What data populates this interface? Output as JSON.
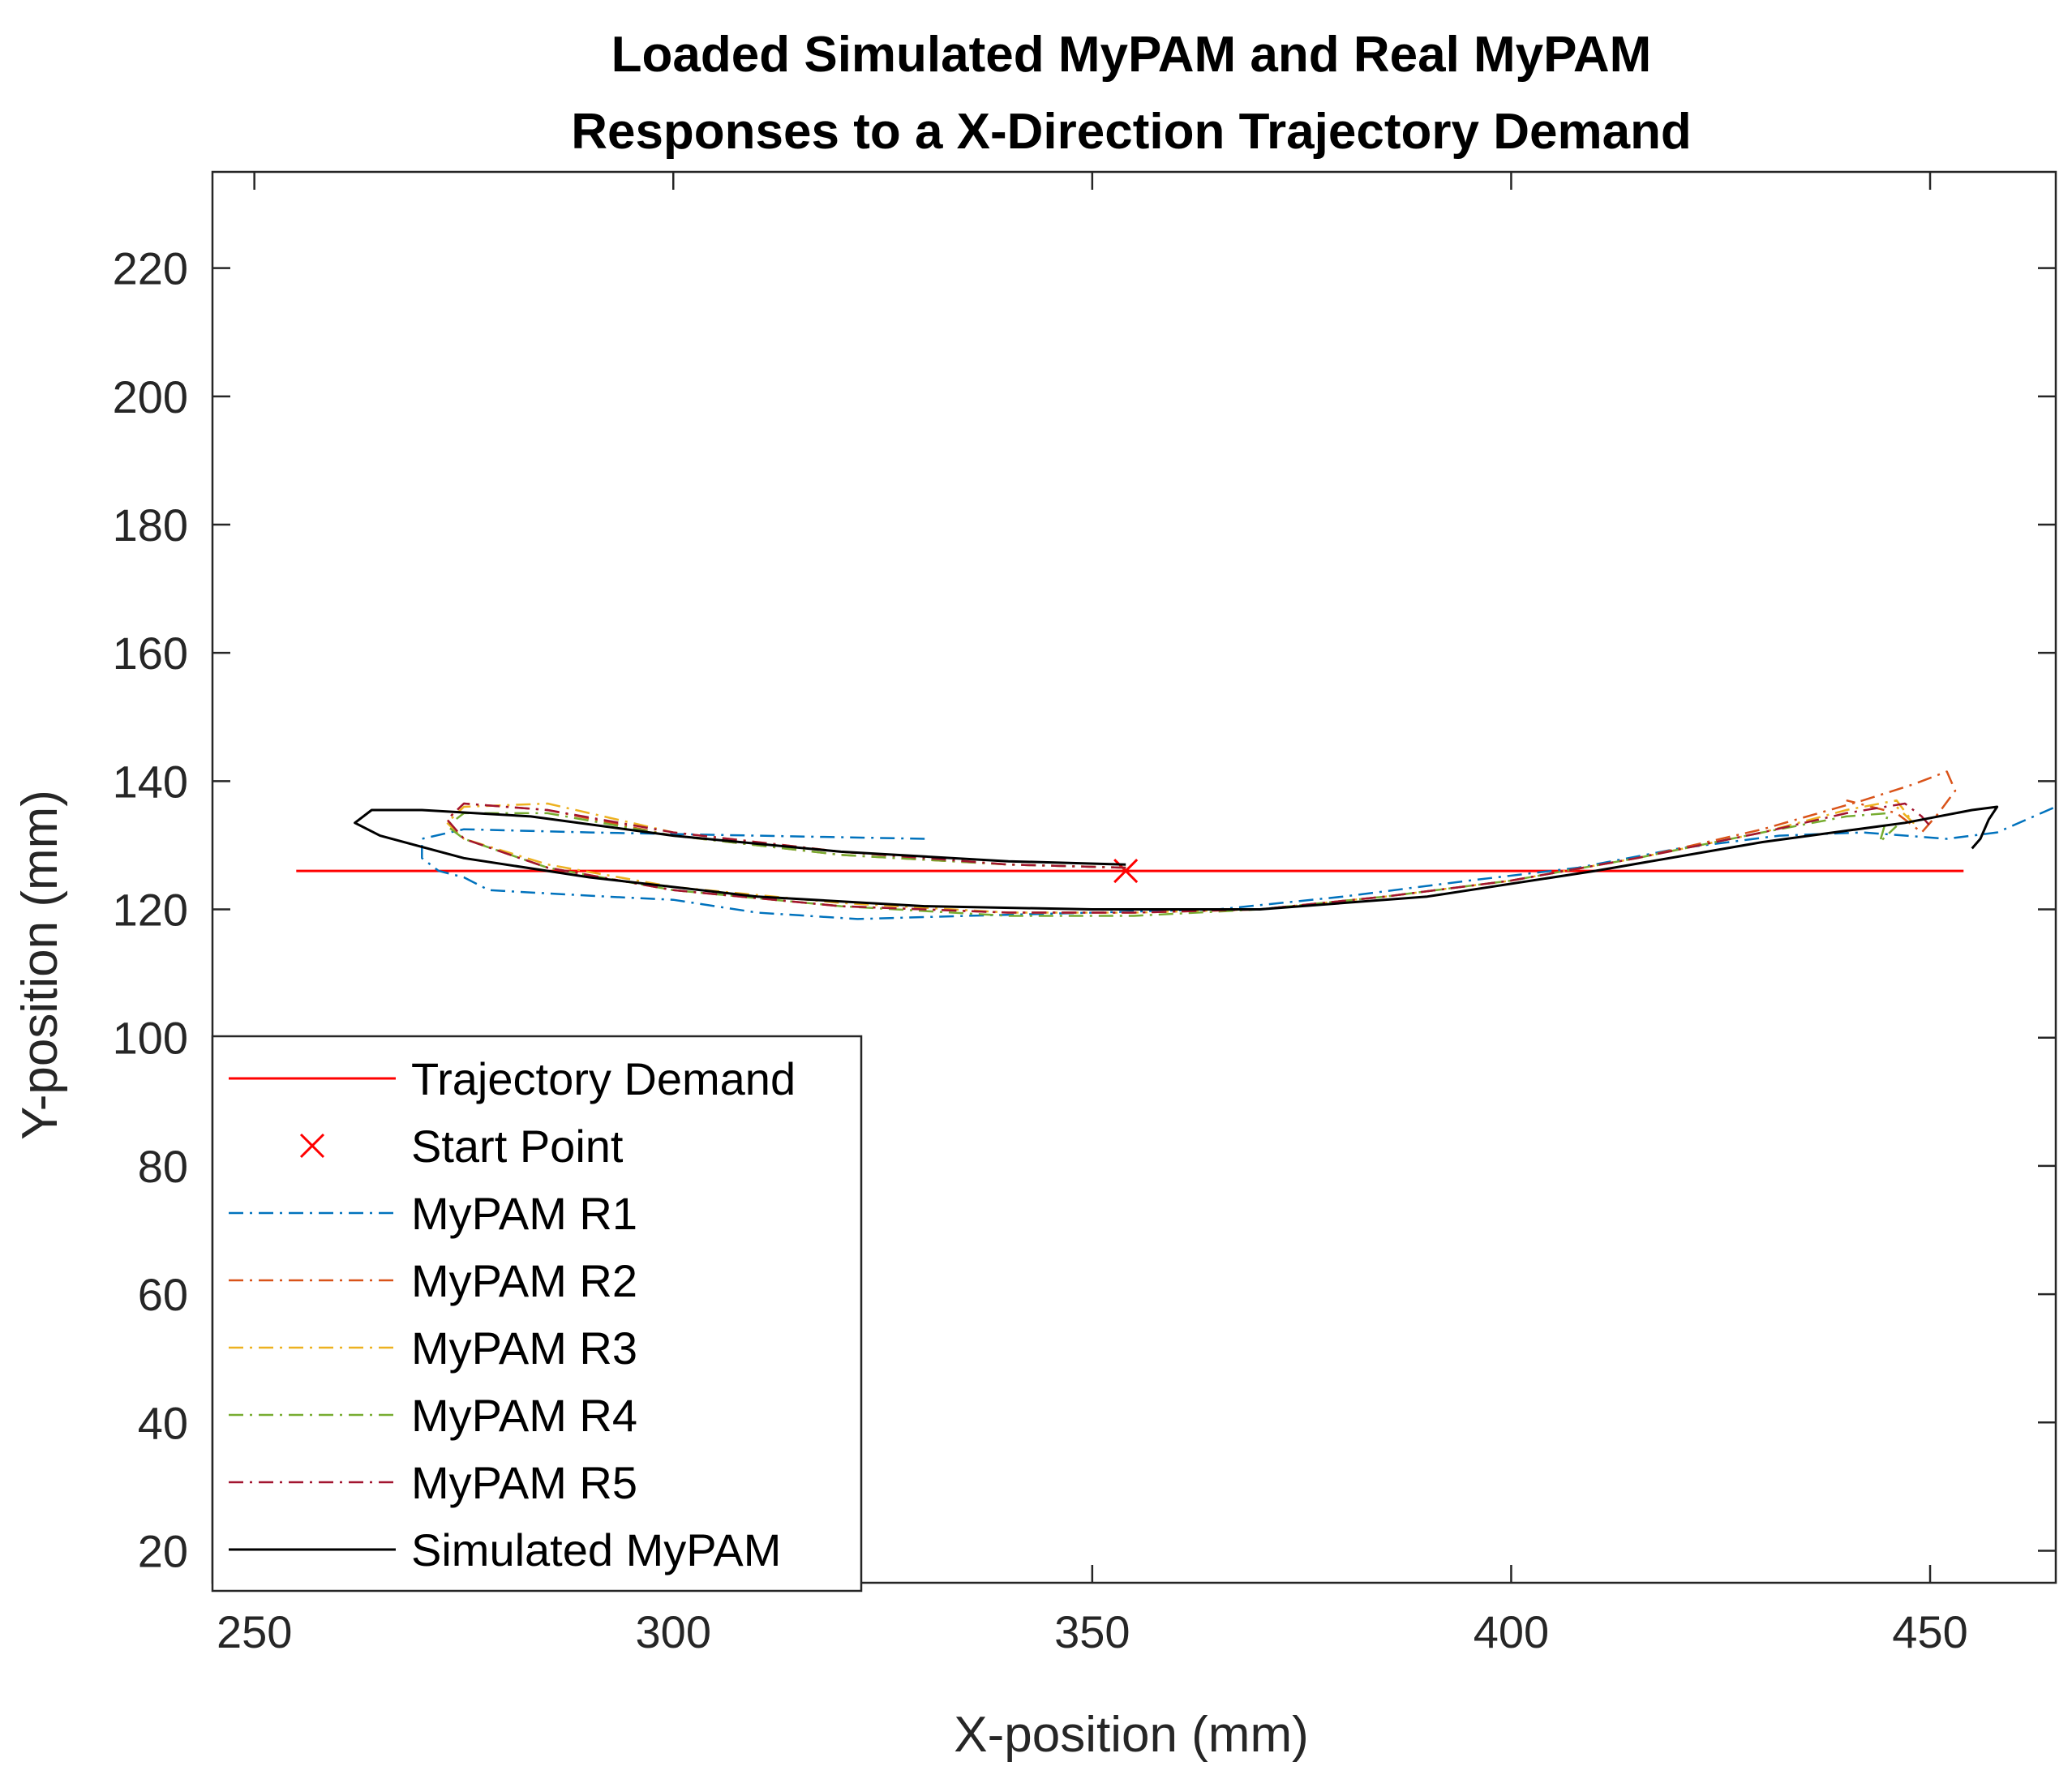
{
  "chart_data": {
    "type": "line",
    "title": [
      "Loaded Simulated MyPAM and Real MyPAM",
      "Responses to a X-Direction Trajectory Demand"
    ],
    "xlabel": "X-position (mm)",
    "ylabel": "Y-position (mm)",
    "xlim": [
      245,
      465
    ],
    "ylim": [
      15,
      235
    ],
    "xticks": [
      250,
      300,
      350,
      400,
      450
    ],
    "yticks": [
      20,
      40,
      60,
      80,
      100,
      120,
      140,
      160,
      180,
      200,
      220
    ],
    "grid": false,
    "legend_position": "bottom-left",
    "series": [
      {
        "name": "Trajectory Demand",
        "color": "#ff0000",
        "style": "solid",
        "x": [
          255,
          454
        ],
        "y": [
          126,
          126
        ]
      },
      {
        "name": "Start Point",
        "color": "#ff0000",
        "style": "marker-x",
        "x": [
          354
        ],
        "y": [
          126
        ]
      },
      {
        "name": "MyPAM R1",
        "color": "#0072bd",
        "style": "dashdot",
        "x": [
          330,
          310,
          290,
          275,
          270,
          270,
          272,
          275,
          278,
          285,
          292,
          300,
          310,
          322,
          335,
          350,
          365,
          380,
          395,
          408,
          420,
          432,
          442,
          452,
          458,
          465
        ],
        "y": [
          131,
          131.5,
          132,
          132.5,
          131,
          128,
          126,
          125,
          123,
          122.5,
          122,
          121.5,
          119.5,
          118.5,
          119,
          119.5,
          120,
          122,
          124.5,
          126.5,
          129.5,
          131.5,
          132,
          131,
          132,
          136
        ]
      },
      {
        "name": "MyPAM R2",
        "color": "#d95319",
        "style": "dashdot",
        "x": [
          354,
          340,
          320,
          300,
          285,
          275,
          273,
          275,
          285,
          300,
          320,
          340,
          355,
          370,
          385,
          400,
          415,
          430,
          442,
          448,
          452,
          453,
          451,
          449,
          446,
          440
        ],
        "y": [
          126.5,
          127,
          128.5,
          131.5,
          135.5,
          136.5,
          134,
          131,
          126.5,
          123,
          120.5,
          119.5,
          119.5,
          120,
          122,
          124.5,
          128,
          132.5,
          137,
          139.5,
          141.5,
          138.5,
          135,
          132,
          135,
          137
        ]
      },
      {
        "name": "MyPAM R3",
        "color": "#edb120",
        "style": "dashdot",
        "x": [
          354,
          340,
          320,
          300,
          285,
          275,
          273,
          275,
          285,
          300,
          320,
          340,
          355,
          370,
          385,
          400,
          415,
          430,
          440,
          446,
          448,
          446
        ],
        "y": [
          126.5,
          127,
          129,
          132,
          136.5,
          136,
          133.5,
          131,
          127,
          123.5,
          121,
          119.5,
          119.5,
          120,
          122,
          124.5,
          128,
          132,
          135.5,
          137,
          133.5,
          136
        ]
      },
      {
        "name": "MyPAM R4",
        "color": "#77ac30",
        "style": "dashdot",
        "x": [
          354,
          340,
          320,
          300,
          285,
          275,
          273,
          275,
          285,
          300,
          320,
          340,
          355,
          370,
          385,
          400,
          415,
          430,
          440,
          445,
          444,
          446
        ],
        "y": [
          126.5,
          127,
          128.5,
          131.5,
          135,
          135,
          133,
          131,
          126.5,
          123,
          120.5,
          119,
          119,
          120,
          122,
          124.5,
          128,
          132,
          134.5,
          135,
          130.5,
          133
        ]
      },
      {
        "name": "MyPAM R5",
        "color": "#a2142f",
        "style": "dashdot",
        "x": [
          354,
          340,
          320,
          300,
          285,
          275,
          273,
          275,
          285,
          300,
          320,
          340,
          355,
          370,
          385,
          400,
          415,
          430,
          440,
          447,
          449,
          450
        ],
        "y": [
          126.5,
          127,
          129,
          132,
          135.5,
          136.5,
          134,
          131,
          126.5,
          123,
          120.5,
          119.5,
          119.5,
          120,
          122,
          124.5,
          128,
          132,
          135,
          136.5,
          134.5,
          133
        ]
      },
      {
        "name": "Simulated MyPAM",
        "color": "#000000",
        "style": "solid",
        "x": [
          354,
          340,
          320,
          300,
          283,
          270,
          264,
          262,
          265,
          275,
          290,
          310,
          330,
          350,
          370,
          390,
          410,
          430,
          447,
          455,
          458,
          457,
          456,
          455
        ],
        "y": [
          127,
          127.5,
          129,
          131.5,
          134.5,
          135.5,
          135.5,
          133.5,
          131.5,
          128,
          125,
          122,
          120.5,
          120,
          120,
          122,
          126,
          130.5,
          133.5,
          135.5,
          136,
          134,
          131,
          129.5
        ]
      }
    ]
  }
}
